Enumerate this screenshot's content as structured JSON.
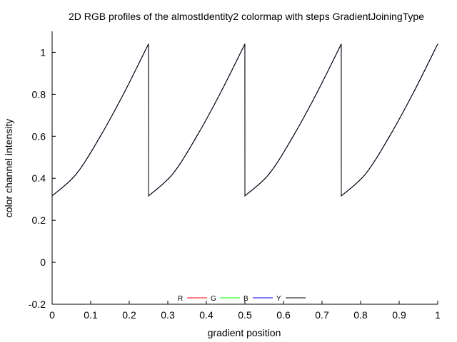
{
  "chart_data": {
    "type": "line",
    "title": "2D RGB profiles of the almostIdentity2 colormap with steps GradientJoiningType",
    "xlabel": "gradient position",
    "ylabel": "color channel intensity",
    "xlim": [
      0,
      1
    ],
    "ylim": [
      -0.2,
      1.1
    ],
    "grid": false,
    "legend_position": "bottom-center",
    "x_ticks": [
      0,
      0.1,
      0.2,
      0.3,
      0.4,
      0.5,
      0.6,
      0.7,
      0.8,
      0.9,
      1
    ],
    "x_tick_labels": [
      "0",
      "0.1",
      "0.2",
      "0.3",
      "0.4",
      "0.5",
      "0.6",
      "0.7",
      "0.8",
      "0.9",
      "1"
    ],
    "y_ticks": [
      -0.2,
      0,
      0.2,
      0.4,
      0.6,
      0.8,
      1
    ],
    "y_tick_labels": [
      "-0.2",
      "0",
      "0.2",
      "0.4",
      "0.6",
      "0.8",
      "1"
    ],
    "series": [
      {
        "name": "R",
        "color": "#ff0000",
        "x": [
          0,
          0.0625,
          0.125,
          0.1875,
          0.2499,
          0.25,
          0.3125,
          0.375,
          0.4375,
          0.4999,
          0.5,
          0.5625,
          0.625,
          0.6875,
          0.7499,
          0.75,
          0.8125,
          0.875,
          0.9375,
          1
        ],
        "values": [
          0.316,
          0.42,
          0.6,
          0.81,
          1.04,
          0.316,
          0.42,
          0.6,
          0.81,
          1.04,
          0.316,
          0.42,
          0.6,
          0.81,
          1.04,
          0.316,
          0.42,
          0.6,
          0.81,
          1.04
        ]
      },
      {
        "name": "G",
        "color": "#00ff00",
        "x": [
          0,
          0.0625,
          0.125,
          0.1875,
          0.2499,
          0.25,
          0.3125,
          0.375,
          0.4375,
          0.4999,
          0.5,
          0.5625,
          0.625,
          0.6875,
          0.7499,
          0.75,
          0.8125,
          0.875,
          0.9375,
          1
        ],
        "values": [
          0.316,
          0.42,
          0.6,
          0.81,
          1.04,
          0.316,
          0.42,
          0.6,
          0.81,
          1.04,
          0.316,
          0.42,
          0.6,
          0.81,
          1.04,
          0.316,
          0.42,
          0.6,
          0.81,
          1.04
        ]
      },
      {
        "name": "B",
        "color": "#0000ff",
        "x": [
          0,
          0.0625,
          0.125,
          0.1875,
          0.2499,
          0.25,
          0.3125,
          0.375,
          0.4375,
          0.4999,
          0.5,
          0.5625,
          0.625,
          0.6875,
          0.7499,
          0.75,
          0.8125,
          0.875,
          0.9375,
          1
        ],
        "values": [
          0.316,
          0.42,
          0.6,
          0.81,
          1.04,
          0.316,
          0.42,
          0.6,
          0.81,
          1.04,
          0.316,
          0.42,
          0.6,
          0.81,
          1.04,
          0.316,
          0.42,
          0.6,
          0.81,
          1.04
        ]
      },
      {
        "name": "Y",
        "color": "#000000",
        "x": [
          0,
          0.0625,
          0.125,
          0.1875,
          0.2499,
          0.25,
          0.3125,
          0.375,
          0.4375,
          0.4999,
          0.5,
          0.5625,
          0.625,
          0.6875,
          0.7499,
          0.75,
          0.8125,
          0.875,
          0.9375,
          1
        ],
        "values": [
          0.316,
          0.42,
          0.6,
          0.81,
          1.04,
          0.316,
          0.42,
          0.6,
          0.81,
          1.04,
          0.316,
          0.42,
          0.6,
          0.81,
          1.04,
          0.316,
          0.42,
          0.6,
          0.81,
          1.04
        ]
      }
    ]
  }
}
